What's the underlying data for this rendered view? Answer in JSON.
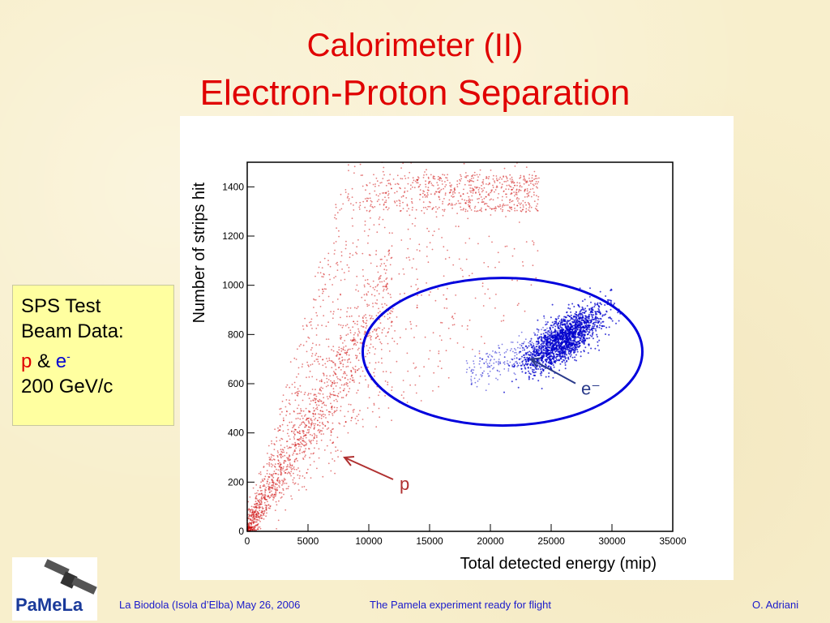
{
  "slide": {
    "title_line1": "Calorimeter (II)",
    "title_line2": "Electron-Proton Separation"
  },
  "info_box": {
    "line1": "SPS Test",
    "line2": "Beam Data:",
    "p_label": "p",
    "amp": "&",
    "e_label": "e",
    "e_sup": "-",
    "line4": "200 GeV/c"
  },
  "footer": {
    "left": "La Biodola (Isola d’Elba) May 26, 2006",
    "center": "The Pamela experiment ready for flight",
    "right": "O. Adriani"
  },
  "logo": {
    "text": "PaMeLa"
  },
  "colors": {
    "title": "#e00000",
    "proton": "#d01010",
    "electron": "#0000cc",
    "circle": "#0000dd",
    "footer": "#1a1acc"
  },
  "chart_data": {
    "type": "scatter",
    "xlabel": "Total detected energy (mip)",
    "ylabel": "Number of strips hit",
    "xlim": [
      0,
      35000
    ],
    "ylim": [
      0,
      1500
    ],
    "xticks": [
      0,
      5000,
      10000,
      15000,
      20000,
      25000,
      30000,
      35000
    ],
    "yticks": [
      0,
      200,
      400,
      600,
      800,
      1000,
      1200,
      1400
    ],
    "series": [
      {
        "name": "p",
        "color": "#d01010",
        "description_points": [
          [
            0,
            0
          ],
          [
            3000,
            500
          ],
          [
            8000,
            700
          ],
          [
            12000,
            1300
          ],
          [
            20000,
            700
          ],
          [
            24000,
            800
          ]
        ]
      },
      {
        "name": "e-",
        "color": "#0000cc",
        "cluster_center": [
          26000,
          780
        ],
        "cluster_spread": [
          3500,
          80
        ]
      }
    ],
    "annotations": [
      {
        "text": "p",
        "arrow_to": [
          8000,
          300
        ]
      },
      {
        "text": "e⁻",
        "arrow_to": [
          26000,
          700
        ]
      }
    ],
    "highlight_ellipse": {
      "center": [
        21000,
        730
      ],
      "radii": [
        11500,
        300
      ]
    },
    "grid": false
  }
}
